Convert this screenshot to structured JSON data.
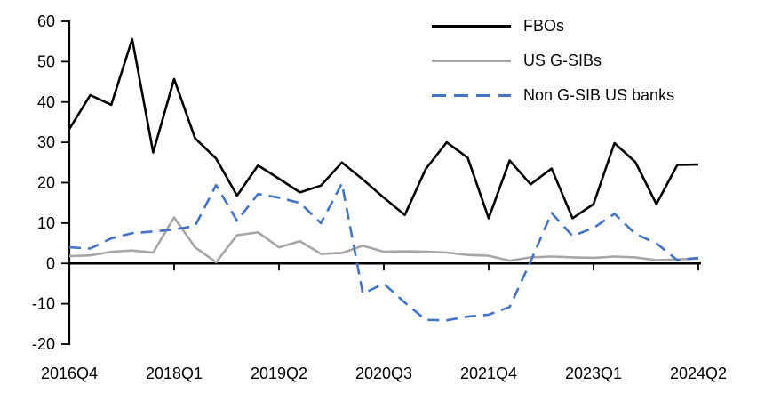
{
  "chart_data": {
    "type": "line",
    "title": "",
    "x": [
      "2016Q4",
      "2017Q1",
      "2017Q2",
      "2017Q3",
      "2017Q4",
      "2018Q1",
      "2018Q2",
      "2018Q3",
      "2018Q4",
      "2019Q1",
      "2019Q2",
      "2019Q3",
      "2019Q4",
      "2020Q1",
      "2020Q2",
      "2020Q3",
      "2020Q4",
      "2021Q1",
      "2021Q2",
      "2021Q3",
      "2021Q4",
      "2022Q1",
      "2022Q2",
      "2022Q3",
      "2022Q4",
      "2023Q1",
      "2023Q2",
      "2023Q3",
      "2023Q4",
      "2024Q1",
      "2024Q2"
    ],
    "x_tick_labels": [
      "2016Q4",
      "2018Q1",
      "2019Q2",
      "2020Q3",
      "2021Q4",
      "2023Q1",
      "2024Q2"
    ],
    "y_tick_labels": [
      "60",
      "50",
      "40",
      "30",
      "20",
      "10",
      "0",
      "-10",
      "-20"
    ],
    "ylim": [
      -20,
      60
    ],
    "ytick_step": 10,
    "grid": false,
    "legend_position": "top-right",
    "axis_color": "#000000",
    "series": [
      {
        "name": "FBOs",
        "color": "#000000",
        "style": "solid",
        "values": [
          33.3,
          41.7,
          39.3,
          55.6,
          27.5,
          45.7,
          31.0,
          26.0,
          16.8,
          24.3,
          21.0,
          17.6,
          19.3,
          25.0,
          20.8,
          16.3,
          12.0,
          23.4,
          30.0,
          26.2,
          11.2,
          25.5,
          19.6,
          23.5,
          11.2,
          14.7,
          29.8,
          25.1,
          14.7,
          24.4,
          24.5
        ]
      },
      {
        "name": "US G-SIBs",
        "color": "#A6A6A6",
        "style": "solid",
        "values": [
          1.8,
          2.0,
          2.9,
          3.2,
          2.7,
          11.4,
          4.0,
          0.3,
          7.0,
          7.7,
          4.0,
          5.5,
          2.4,
          2.6,
          4.4,
          2.9,
          3.0,
          2.9,
          2.7,
          2.1,
          1.9,
          0.7,
          1.5,
          1.7,
          1.5,
          1.4,
          1.7,
          1.5,
          0.8,
          1.0,
          1.2
        ]
      },
      {
        "name": "Non G-SIB US banks",
        "color": "#4472C4",
        "style": "dashed",
        "values": [
          4.0,
          3.7,
          6.2,
          7.5,
          7.9,
          8.4,
          9.3,
          19.4,
          10.6,
          17.2,
          16.3,
          15.0,
          10.0,
          19.8,
          -7.5,
          -5.0,
          -9.7,
          -14.0,
          -14.1,
          -13.2,
          -12.7,
          -10.8,
          0.5,
          12.5,
          6.8,
          8.8,
          12.3,
          7.3,
          5.0,
          0.8,
          1.4
        ]
      }
    ]
  }
}
